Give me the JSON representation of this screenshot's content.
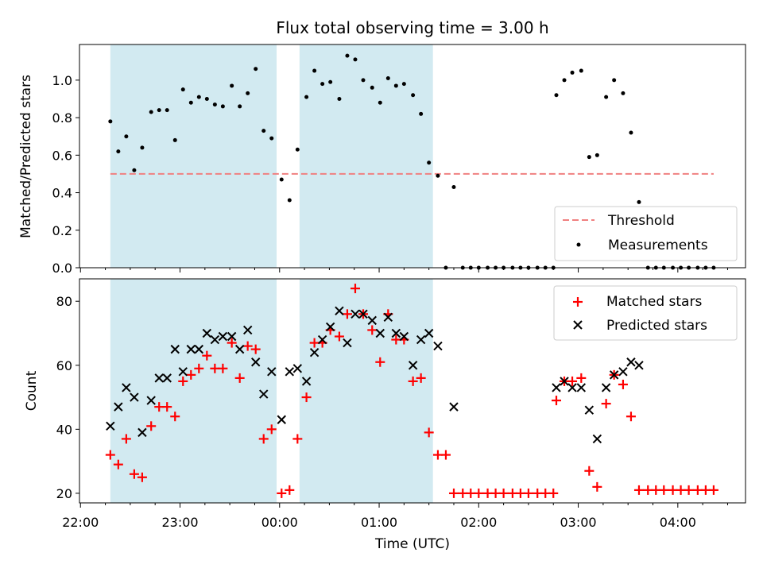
{
  "chart_data": {
    "type": "scatter",
    "title": "Flux total observing time = 3.00 h",
    "xlabel": "Time (UTC)",
    "x_ticks": [
      "22:00",
      "23:00",
      "00:00",
      "01:00",
      "02:00",
      "03:00",
      "04:00"
    ],
    "x_range_hours": [
      21.99,
      28.68
    ],
    "shaded_intervals_hours": [
      [
        22.3,
        23.97
      ],
      [
        24.2,
        25.54
      ]
    ],
    "colors": {
      "shade": "#add8e6",
      "threshold": "#f08080",
      "measurements": "#000000",
      "matched": "#ff0000",
      "predicted": "#000000"
    },
    "top": {
      "ylabel": "Matched/Predicted stars",
      "ylim": [
        0,
        1.19
      ],
      "y_ticks": [
        "0.0",
        "0.2",
        "0.4",
        "0.6",
        "0.8",
        "1.0"
      ],
      "threshold": 0.5,
      "legend": [
        "Threshold",
        "Measurements"
      ],
      "measurements": [
        [
          22.3,
          0.78
        ],
        [
          22.38,
          0.62
        ],
        [
          22.46,
          0.7
        ],
        [
          22.54,
          0.52
        ],
        [
          22.62,
          0.64
        ],
        [
          22.71,
          0.83
        ],
        [
          22.79,
          0.84
        ],
        [
          22.87,
          0.84
        ],
        [
          22.95,
          0.68
        ],
        [
          23.03,
          0.95
        ],
        [
          23.11,
          0.88
        ],
        [
          23.19,
          0.91
        ],
        [
          23.27,
          0.9
        ],
        [
          23.35,
          0.87
        ],
        [
          23.43,
          0.86
        ],
        [
          23.52,
          0.97
        ],
        [
          23.6,
          0.86
        ],
        [
          23.68,
          0.93
        ],
        [
          23.76,
          1.06
        ],
        [
          23.84,
          0.73
        ],
        [
          23.92,
          0.69
        ],
        [
          24.02,
          0.47
        ],
        [
          24.1,
          0.36
        ],
        [
          24.18,
          0.63
        ],
        [
          24.27,
          0.91
        ],
        [
          24.35,
          1.05
        ],
        [
          24.43,
          0.98
        ],
        [
          24.51,
          0.99
        ],
        [
          24.6,
          0.9
        ],
        [
          24.68,
          1.13
        ],
        [
          24.76,
          1.11
        ],
        [
          24.84,
          1.0
        ],
        [
          24.93,
          0.96
        ],
        [
          25.01,
          0.88
        ],
        [
          25.09,
          1.01
        ],
        [
          25.17,
          0.97
        ],
        [
          25.25,
          0.98
        ],
        [
          25.34,
          0.92
        ],
        [
          25.42,
          0.82
        ],
        [
          25.5,
          0.56
        ],
        [
          25.59,
          0.49
        ],
        [
          25.67,
          0.0
        ],
        [
          25.75,
          0.43
        ],
        [
          25.84,
          0.0
        ],
        [
          25.92,
          0.0
        ],
        [
          26.0,
          0.0
        ],
        [
          26.09,
          0.0
        ],
        [
          26.17,
          0.0
        ],
        [
          26.25,
          0.0
        ],
        [
          26.34,
          0.0
        ],
        [
          26.42,
          0.0
        ],
        [
          26.5,
          0.0
        ],
        [
          26.59,
          0.0
        ],
        [
          26.67,
          0.0
        ],
        [
          26.75,
          0.0
        ],
        [
          26.78,
          0.92
        ],
        [
          26.86,
          1.0
        ],
        [
          26.94,
          1.04
        ],
        [
          27.03,
          1.05
        ],
        [
          27.11,
          0.59
        ],
        [
          27.19,
          0.6
        ],
        [
          27.28,
          0.91
        ],
        [
          27.36,
          1.0
        ],
        [
          27.45,
          0.93
        ],
        [
          27.53,
          0.72
        ],
        [
          27.61,
          0.35
        ],
        [
          27.7,
          0.0
        ],
        [
          27.78,
          0.0
        ],
        [
          27.86,
          0.0
        ],
        [
          27.95,
          0.0
        ],
        [
          28.03,
          0.0
        ],
        [
          28.11,
          0.0
        ],
        [
          28.2,
          0.0
        ],
        [
          28.28,
          0.0
        ],
        [
          28.36,
          0.0
        ]
      ]
    },
    "bottom": {
      "ylabel": "Count",
      "ylim": [
        17,
        87
      ],
      "y_ticks": [
        "20",
        "40",
        "60",
        "80"
      ],
      "legend": [
        "Matched stars",
        "Predicted stars"
      ],
      "matched": [
        [
          22.3,
          32
        ],
        [
          22.38,
          29
        ],
        [
          22.46,
          37
        ],
        [
          22.54,
          26
        ],
        [
          22.62,
          25
        ],
        [
          22.71,
          41
        ],
        [
          22.79,
          47
        ],
        [
          22.87,
          47
        ],
        [
          22.95,
          44
        ],
        [
          23.03,
          55
        ],
        [
          23.11,
          57
        ],
        [
          23.19,
          59
        ],
        [
          23.27,
          63
        ],
        [
          23.35,
          59
        ],
        [
          23.43,
          59
        ],
        [
          23.52,
          67
        ],
        [
          23.6,
          56
        ],
        [
          23.68,
          66
        ],
        [
          23.76,
          65
        ],
        [
          23.84,
          37
        ],
        [
          23.92,
          40
        ],
        [
          24.02,
          20
        ],
        [
          24.1,
          21
        ],
        [
          24.18,
          37
        ],
        [
          24.27,
          50
        ],
        [
          24.35,
          67
        ],
        [
          24.43,
          67
        ],
        [
          24.51,
          71
        ],
        [
          24.6,
          69
        ],
        [
          24.68,
          76
        ],
        [
          24.76,
          84
        ],
        [
          24.84,
          76
        ],
        [
          24.93,
          71
        ],
        [
          25.01,
          61
        ],
        [
          25.09,
          76
        ],
        [
          25.17,
          68
        ],
        [
          25.25,
          68
        ],
        [
          25.34,
          55
        ],
        [
          25.42,
          56
        ],
        [
          25.5,
          39
        ],
        [
          25.59,
          32
        ],
        [
          25.67,
          32
        ],
        [
          25.75,
          20
        ],
        [
          25.84,
          20
        ],
        [
          25.92,
          20
        ],
        [
          26.0,
          20
        ],
        [
          26.09,
          20
        ],
        [
          26.17,
          20
        ],
        [
          26.25,
          20
        ],
        [
          26.34,
          20
        ],
        [
          26.42,
          20
        ],
        [
          26.5,
          20
        ],
        [
          26.59,
          20
        ],
        [
          26.67,
          20
        ],
        [
          26.75,
          20
        ],
        [
          26.78,
          49
        ],
        [
          26.86,
          55
        ],
        [
          26.94,
          55
        ],
        [
          27.03,
          56
        ],
        [
          27.11,
          27
        ],
        [
          27.19,
          22
        ],
        [
          27.28,
          48
        ],
        [
          27.36,
          57
        ],
        [
          27.45,
          54
        ],
        [
          27.53,
          44
        ],
        [
          27.61,
          21
        ],
        [
          27.7,
          21
        ],
        [
          27.78,
          21
        ],
        [
          27.86,
          21
        ],
        [
          27.95,
          21
        ],
        [
          28.03,
          21
        ],
        [
          28.11,
          21
        ],
        [
          28.2,
          21
        ],
        [
          28.28,
          21
        ],
        [
          28.36,
          21
        ]
      ],
      "predicted": [
        [
          22.3,
          41
        ],
        [
          22.38,
          47
        ],
        [
          22.46,
          53
        ],
        [
          22.54,
          50
        ],
        [
          22.62,
          39
        ],
        [
          22.71,
          49
        ],
        [
          22.79,
          56
        ],
        [
          22.87,
          56
        ],
        [
          22.95,
          65
        ],
        [
          23.03,
          58
        ],
        [
          23.11,
          65
        ],
        [
          23.19,
          65
        ],
        [
          23.27,
          70
        ],
        [
          23.35,
          68
        ],
        [
          23.43,
          69
        ],
        [
          23.52,
          69
        ],
        [
          23.6,
          65
        ],
        [
          23.68,
          71
        ],
        [
          23.76,
          61
        ],
        [
          23.84,
          51
        ],
        [
          23.92,
          58
        ],
        [
          24.02,
          43
        ],
        [
          24.1,
          58
        ],
        [
          24.18,
          59
        ],
        [
          24.27,
          55
        ],
        [
          24.35,
          64
        ],
        [
          24.43,
          68
        ],
        [
          24.51,
          72
        ],
        [
          24.6,
          77
        ],
        [
          24.68,
          67
        ],
        [
          24.76,
          76
        ],
        [
          24.84,
          76
        ],
        [
          24.93,
          74
        ],
        [
          25.01,
          70
        ],
        [
          25.09,
          75
        ],
        [
          25.17,
          70
        ],
        [
          25.25,
          69
        ],
        [
          25.34,
          60
        ],
        [
          25.42,
          68
        ],
        [
          25.5,
          70
        ],
        [
          25.59,
          66
        ],
        [
          25.75,
          47
        ],
        [
          26.78,
          53
        ],
        [
          26.86,
          55
        ],
        [
          26.94,
          53
        ],
        [
          27.03,
          53
        ],
        [
          27.11,
          46
        ],
        [
          27.19,
          37
        ],
        [
          27.28,
          53
        ],
        [
          27.36,
          57
        ],
        [
          27.45,
          58
        ],
        [
          27.53,
          61
        ],
        [
          27.61,
          60
        ]
      ]
    }
  }
}
